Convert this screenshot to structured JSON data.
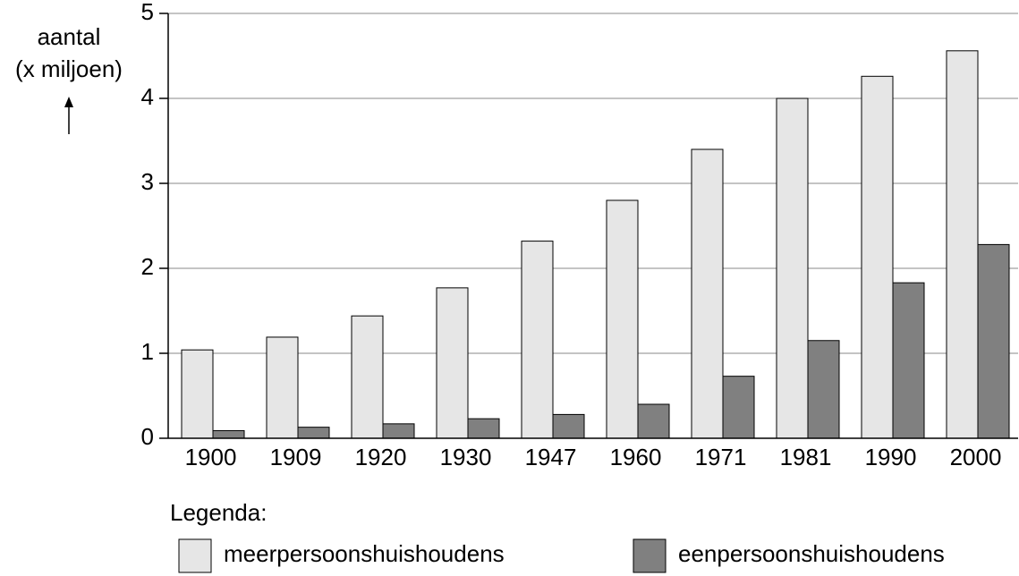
{
  "chart_data": {
    "type": "bar",
    "ylabel": [
      "aantal",
      "(x miljoen)"
    ],
    "legend_title": "Legenda:",
    "categories": [
      "1900",
      "1909",
      "1920",
      "1930",
      "1947",
      "1960",
      "1971",
      "1981",
      "1990",
      "2000"
    ],
    "series": [
      {
        "name": "meerpersoonshuishoudens",
        "color": "#e6e6e6",
        "values": [
          1.04,
          1.19,
          1.44,
          1.77,
          2.32,
          2.8,
          3.4,
          4.0,
          4.26,
          4.56
        ]
      },
      {
        "name": "eenpersoonshuishoudens",
        "color": "#808080",
        "values": [
          0.09,
          0.13,
          0.17,
          0.23,
          0.28,
          0.4,
          0.73,
          1.15,
          1.83,
          2.28
        ]
      }
    ],
    "ylim": [
      0,
      5
    ],
    "yticks": [
      0,
      1,
      2,
      3,
      4,
      5
    ],
    "grid": true
  }
}
